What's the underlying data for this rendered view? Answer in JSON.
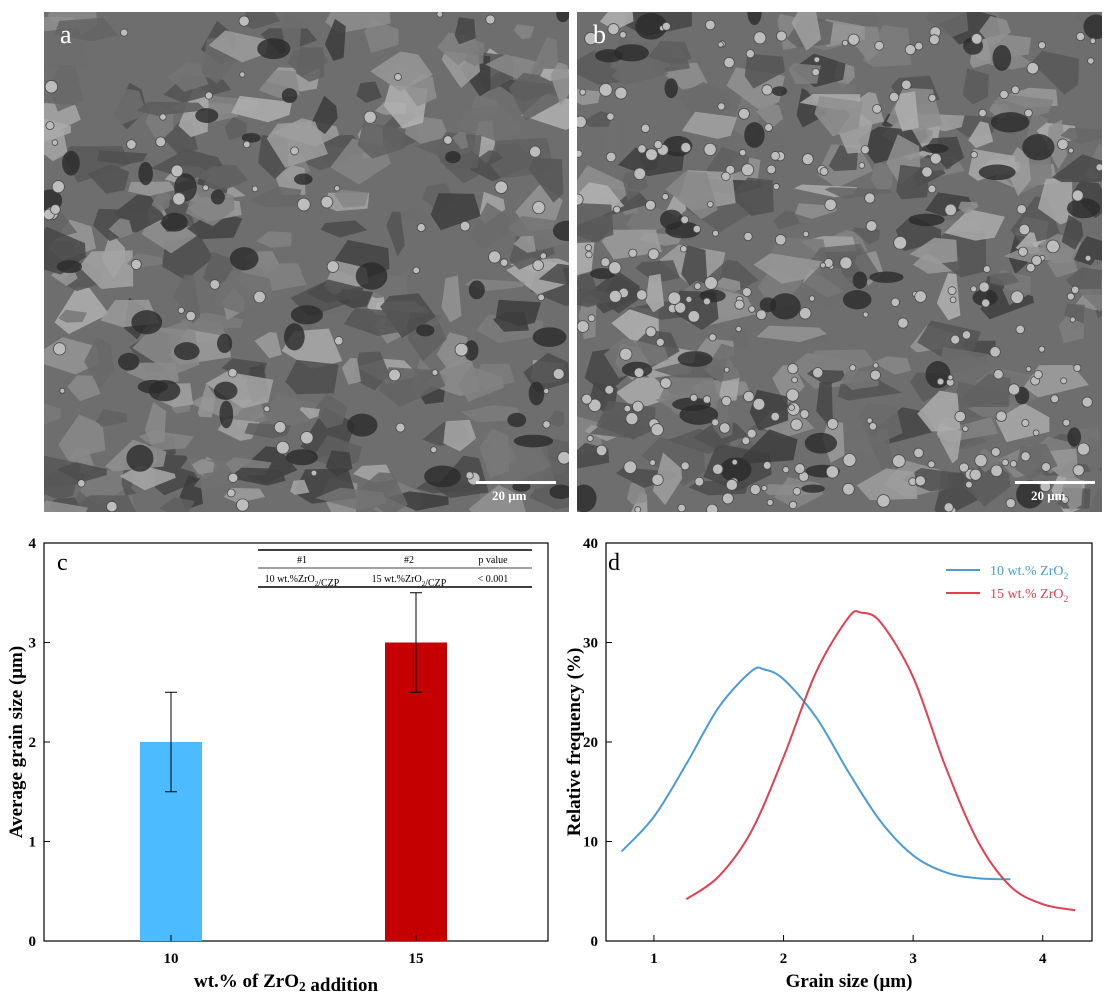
{
  "micrographs": [
    {
      "panel": "a",
      "scale_bar": "20 μm"
    },
    {
      "panel": "b",
      "scale_bar": "20 μm"
    }
  ],
  "chart_data": [
    {
      "type": "bar",
      "panel": "c",
      "categories": [
        "10",
        "15"
      ],
      "values": [
        2.0,
        3.0
      ],
      "errors": [
        0.5,
        0.5
      ],
      "colors": [
        "#4dbbff",
        "#c40000"
      ],
      "xlabel": "wt.% of ZrO2 addition",
      "ylabel": "Average grain size (μm)",
      "ylim": [
        0,
        4
      ],
      "yticks": [
        "0",
        "1",
        "2",
        "3",
        "4"
      ],
      "table": {
        "headers": [
          "#1",
          "#2",
          "p value"
        ],
        "rows": [
          [
            "10 wt.%ZrO2/CZP",
            "15 wt.%ZrO2/CZP",
            "< 0.001"
          ]
        ]
      }
    },
    {
      "type": "line",
      "panel": "d",
      "xlabel": "Grain size (μm)",
      "ylabel": "Relative frequency (%)",
      "xlim": [
        0.63,
        4.38
      ],
      "ylim": [
        0,
        40
      ],
      "xticks": [
        "1",
        "2",
        "3",
        "4"
      ],
      "yticks": [
        "0",
        "10",
        "20",
        "30",
        "40"
      ],
      "legend_position": "top-right",
      "series": [
        {
          "name": "10 wt.% ZrO2",
          "color": "#4a9bd6",
          "x": [
            0.75,
            1.0,
            1.25,
            1.5,
            1.75,
            1.85,
            2.0,
            2.25,
            2.5,
            2.75,
            3.0,
            3.25,
            3.5,
            3.75
          ],
          "y": [
            9.0,
            12.5,
            17.8,
            23.5,
            27.1,
            27.3,
            26.3,
            22.5,
            17.0,
            12.0,
            8.6,
            6.9,
            6.3,
            6.2
          ]
        },
        {
          "name": "15 wt.% ZrO2",
          "color": "#e0404f",
          "x": [
            1.25,
            1.5,
            1.75,
            2.0,
            2.25,
            2.5,
            2.6,
            2.75,
            3.0,
            3.25,
            3.5,
            3.75,
            4.0,
            4.25
          ],
          "y": [
            4.2,
            6.5,
            11.0,
            18.5,
            27.0,
            32.5,
            33.0,
            32.0,
            26.5,
            17.5,
            10.0,
            5.5,
            3.7,
            3.1
          ]
        }
      ]
    }
  ]
}
